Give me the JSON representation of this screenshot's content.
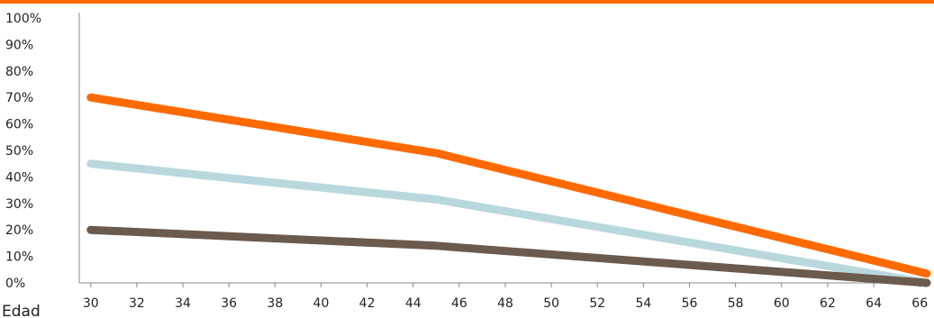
{
  "chart_data": {
    "type": "line",
    "xlabel": "Edad",
    "ylabel": "",
    "x_ticks": [
      "30",
      "32",
      "34",
      "36",
      "38",
      "40",
      "42",
      "44",
      "46",
      "48",
      "50",
      "52",
      "54",
      "56",
      "58",
      "60",
      "62",
      "64",
      "66"
    ],
    "y_ticks": [
      "0%",
      "10%",
      "20%",
      "30%",
      "40%",
      "50%",
      "60%",
      "70%",
      "80%",
      "90%",
      "100%"
    ],
    "xlim": [
      29.5,
      66.5
    ],
    "ylim": [
      0,
      100
    ],
    "grid": false,
    "series": [
      {
        "color": "#ff6a00",
        "points": [
          [
            30,
            70
          ],
          [
            45,
            49
          ],
          [
            66.3,
            3.5
          ]
        ]
      },
      {
        "color": "#b8d8de",
        "points": [
          [
            30,
            45
          ],
          [
            45,
            31.5
          ],
          [
            66.3,
            0
          ]
        ]
      },
      {
        "color": "#6b5a4e",
        "points": [
          [
            30,
            20
          ],
          [
            45,
            14
          ],
          [
            66.3,
            0
          ]
        ]
      }
    ]
  },
  "colors": {
    "accent": "#ff6a00",
    "axis": "#888888",
    "text": "#222222"
  }
}
